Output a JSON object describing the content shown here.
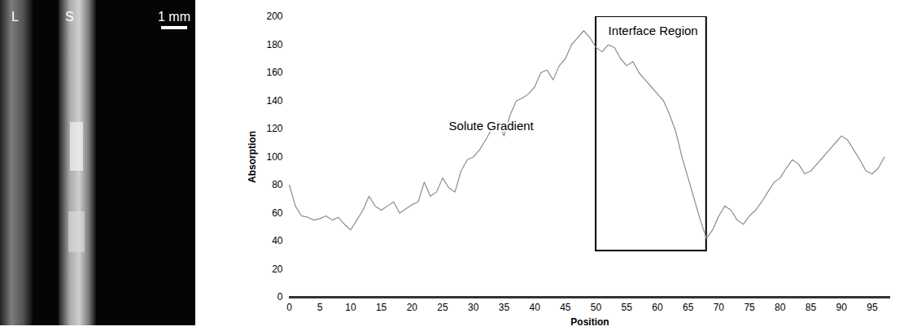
{
  "image_panel": {
    "labels": [
      "L",
      "S"
    ],
    "scale_bar": "1 mm"
  },
  "chart_data": {
    "type": "line",
    "x_label": "Position",
    "y_label": "Absorption",
    "x": [
      0,
      1,
      2,
      3,
      4,
      5,
      6,
      7,
      8,
      9,
      10,
      11,
      12,
      13,
      14,
      15,
      16,
      17,
      18,
      19,
      20,
      21,
      22,
      23,
      24,
      25,
      26,
      27,
      28,
      29,
      30,
      31,
      32,
      33,
      34,
      35,
      36,
      37,
      38,
      39,
      40,
      41,
      42,
      43,
      44,
      45,
      46,
      47,
      48,
      49,
      50,
      51,
      52,
      53,
      54,
      55,
      56,
      57,
      58,
      59,
      60,
      61,
      62,
      63,
      64,
      65,
      66,
      67,
      68,
      69,
      70,
      71,
      72,
      73,
      74,
      75,
      76,
      77,
      78,
      79,
      80,
      81,
      82,
      83,
      84,
      85,
      86,
      87,
      88,
      89,
      90,
      91,
      92,
      93,
      94,
      95,
      96,
      97
    ],
    "values": [
      80,
      65,
      58,
      57,
      55,
      56,
      58,
      55,
      57,
      52,
      48,
      55,
      62,
      72,
      65,
      62,
      65,
      68,
      60,
      63,
      66,
      68,
      82,
      72,
      75,
      85,
      78,
      75,
      90,
      98,
      100,
      105,
      112,
      120,
      125,
      115,
      130,
      140,
      142,
      145,
      150,
      160,
      162,
      155,
      165,
      170,
      180,
      185,
      190,
      185,
      178,
      175,
      180,
      178,
      170,
      165,
      168,
      160,
      155,
      150,
      145,
      140,
      130,
      118,
      100,
      85,
      70,
      55,
      42,
      48,
      58,
      65,
      62,
      55,
      52,
      58,
      62,
      68,
      75,
      82,
      85,
      92,
      98,
      95,
      88,
      90,
      95,
      100,
      105,
      110,
      115,
      112,
      105,
      98,
      90,
      88,
      92,
      100
    ],
    "color": "#8c8c8c",
    "xlim": [
      0,
      98
    ],
    "ylim": [
      0,
      200
    ],
    "xticks": [
      0,
      5,
      10,
      15,
      20,
      25,
      30,
      35,
      40,
      45,
      50,
      55,
      60,
      65,
      70,
      75,
      80,
      85,
      90,
      95
    ],
    "yticks": [
      0,
      20,
      40,
      60,
      80,
      100,
      120,
      140,
      160,
      180,
      200
    ],
    "grid": false,
    "annotations": [
      {
        "text": "Solute Gradient",
        "x": 26,
        "y": 122
      },
      {
        "text": "Interface Region",
        "x": 52,
        "y": 190
      }
    ],
    "regions": [
      {
        "x": [
          50,
          68
        ],
        "y": [
          33,
          200
        ]
      }
    ]
  }
}
